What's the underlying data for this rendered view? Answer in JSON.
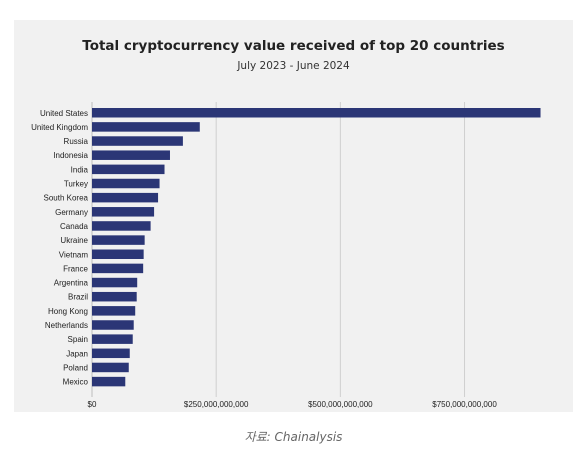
{
  "chart_data": {
    "type": "bar",
    "orientation": "horizontal",
    "title": "Total cryptocurrency value received of top 20 countries",
    "subtitle": "July 2023 - June 2024",
    "categories": [
      "United States",
      "United Kingdom",
      "Russia",
      "Indonesia",
      "India",
      "Turkey",
      "South Korea",
      "Germany",
      "Canada",
      "Ukraine",
      "Vietnam",
      "France",
      "Argentina",
      "Brazil",
      "Hong Kong",
      "Netherlands",
      "Spain",
      "Japan",
      "Poland",
      "Mexico"
    ],
    "values": [
      903000000000,
      217000000000,
      183000000000,
      157000000000,
      146000000000,
      136000000000,
      133000000000,
      125000000000,
      118000000000,
      106000000000,
      104000000000,
      103000000000,
      91000000000,
      90000000000,
      87000000000,
      84000000000,
      82000000000,
      76000000000,
      74000000000,
      67000000000
    ],
    "x_ticks": [
      0,
      250000000000,
      500000000000,
      750000000000
    ],
    "x_tick_labels": [
      "$0",
      "$250,000,000,000",
      "$500,000,000,000",
      "$750,000,000,000"
    ],
    "xlim": [
      0,
      910000000000
    ],
    "grid": "vertical",
    "bar_color": "#2b3676"
  },
  "caption": "자료: Chainalysis"
}
